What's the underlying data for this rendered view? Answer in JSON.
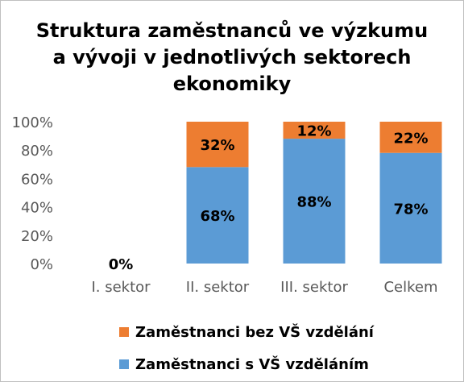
{
  "chart_data": {
    "type": "bar",
    "stacked": true,
    "title_lines": [
      "Struktura zaměstnanců ve výzkumu",
      "a vývoji v jednotlivých sektorech",
      "ekonomiky"
    ],
    "categories": [
      "I. sektor",
      "II. sektor",
      "III. sektor",
      "Celkem"
    ],
    "series": [
      {
        "name": "Zaměstnanci s VŠ vzděláním",
        "values": [
          0,
          68,
          88,
          78
        ],
        "labels": [
          "0%",
          "68%",
          "88%",
          "78%"
        ],
        "color": "#5B9BD5"
      },
      {
        "name": "Zaměstnanci bez VŠ vzdělání",
        "values": [
          0,
          32,
          12,
          22
        ],
        "labels": [
          "",
          "32%",
          "12%",
          "22%"
        ],
        "color": "#ED7D31"
      }
    ],
    "y_ticks": [
      "0%",
      "20%",
      "40%",
      "60%",
      "80%",
      "100%"
    ],
    "ylim": [
      0,
      100
    ],
    "grid": false,
    "legend_position": "bottom",
    "legend_order": [
      1,
      0
    ]
  }
}
